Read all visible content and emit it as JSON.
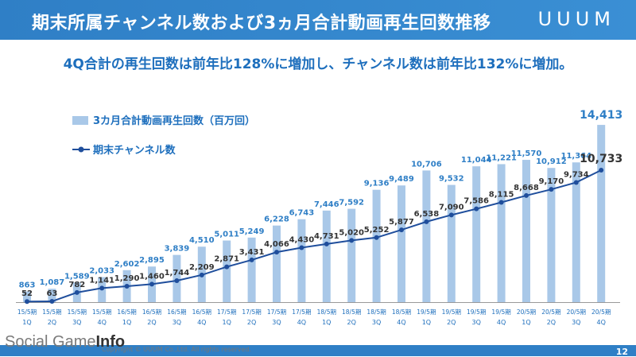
{
  "header": {
    "title": "期末所属チャンネル数および3ヵ月合計動画再生回数推移",
    "logo": "UUUM"
  },
  "subtitle": "4Q合計の再生回数は前年比128%に増加し、チャンネル数は前年比132%に増加。",
  "footer": {
    "watermark_a": "Social Game",
    "watermark_b": "Info",
    "copyright": "Copyright © UUUM Co.,Ltd. All rights reserved.",
    "page": "12"
  },
  "colors": {
    "bar": "#a9c8e8",
    "line": "#1f4e9c",
    "accent": "#2f7fc6"
  },
  "chart_data": {
    "type": "bar+line",
    "categories": [
      [
        "15/5期",
        "1Q"
      ],
      [
        "15/5期",
        "2Q"
      ],
      [
        "15/5期",
        "3Q"
      ],
      [
        "15/5期",
        "4Q"
      ],
      [
        "16/5期",
        "1Q"
      ],
      [
        "16/5期",
        "2Q"
      ],
      [
        "16/5期",
        "3Q"
      ],
      [
        "16/5期",
        "4Q"
      ],
      [
        "17/5期",
        "1Q"
      ],
      [
        "17/5期",
        "2Q"
      ],
      [
        "17/5期",
        "3Q"
      ],
      [
        "17/5期",
        "4Q"
      ],
      [
        "18/5期",
        "1Q"
      ],
      [
        "18/5期",
        "2Q"
      ],
      [
        "18/5期",
        "3Q"
      ],
      [
        "18/5期",
        "4Q"
      ],
      [
        "19/5期",
        "1Q"
      ],
      [
        "19/5期",
        "2Q"
      ],
      [
        "19/5期",
        "3Q"
      ],
      [
        "19/5期",
        "4Q"
      ],
      [
        "20/5期",
        "1Q"
      ],
      [
        "20/5期",
        "2Q"
      ],
      [
        "20/5期",
        "3Q"
      ],
      [
        "20/5期",
        "4Q"
      ]
    ],
    "series": [
      {
        "name": "3カ月合計動画再生回数（百万回）",
        "kind": "bar",
        "values": [
          863,
          1087,
          1589,
          2033,
          2602,
          2895,
          3839,
          4510,
          5011,
          5249,
          6228,
          6743,
          7446,
          7592,
          9136,
          9489,
          10706,
          9532,
          11044,
          11221,
          11570,
          10912,
          11364,
          14413
        ],
        "labels": [
          "863",
          "1,087",
          "1,589",
          "2,033",
          "2,602",
          "2,895",
          "3,839",
          "4,510",
          "5,011",
          "5,249",
          "6,228",
          "6,743",
          "7,446",
          "7,592",
          "9,136",
          "9,489",
          "10,706",
          "9,532",
          "11,044",
          "11,221",
          "11,570",
          "10,912",
          "11,364",
          "14,413"
        ]
      },
      {
        "name": "期末チャンネル数",
        "kind": "line",
        "values": [
          52,
          63,
          782,
          1141,
          1290,
          1460,
          1744,
          2209,
          2871,
          3431,
          4066,
          4430,
          4731,
          5020,
          5252,
          5877,
          6538,
          7090,
          7586,
          8115,
          8668,
          9170,
          9734,
          10733
        ],
        "labels": [
          "52",
          "63",
          "782",
          "1,141",
          "1,290",
          "1,460",
          "1,744",
          "2,209",
          "2,871",
          "3,431",
          "4,066",
          "4,430",
          "4,731",
          "5,020",
          "5,252",
          "5,877",
          "6,538",
          "7,090",
          "7,586",
          "8,115",
          "8,668",
          "9,170",
          "9,734",
          "10,733"
        ]
      }
    ],
    "ylim": [
      0,
      15000
    ],
    "legend": "top-left"
  }
}
